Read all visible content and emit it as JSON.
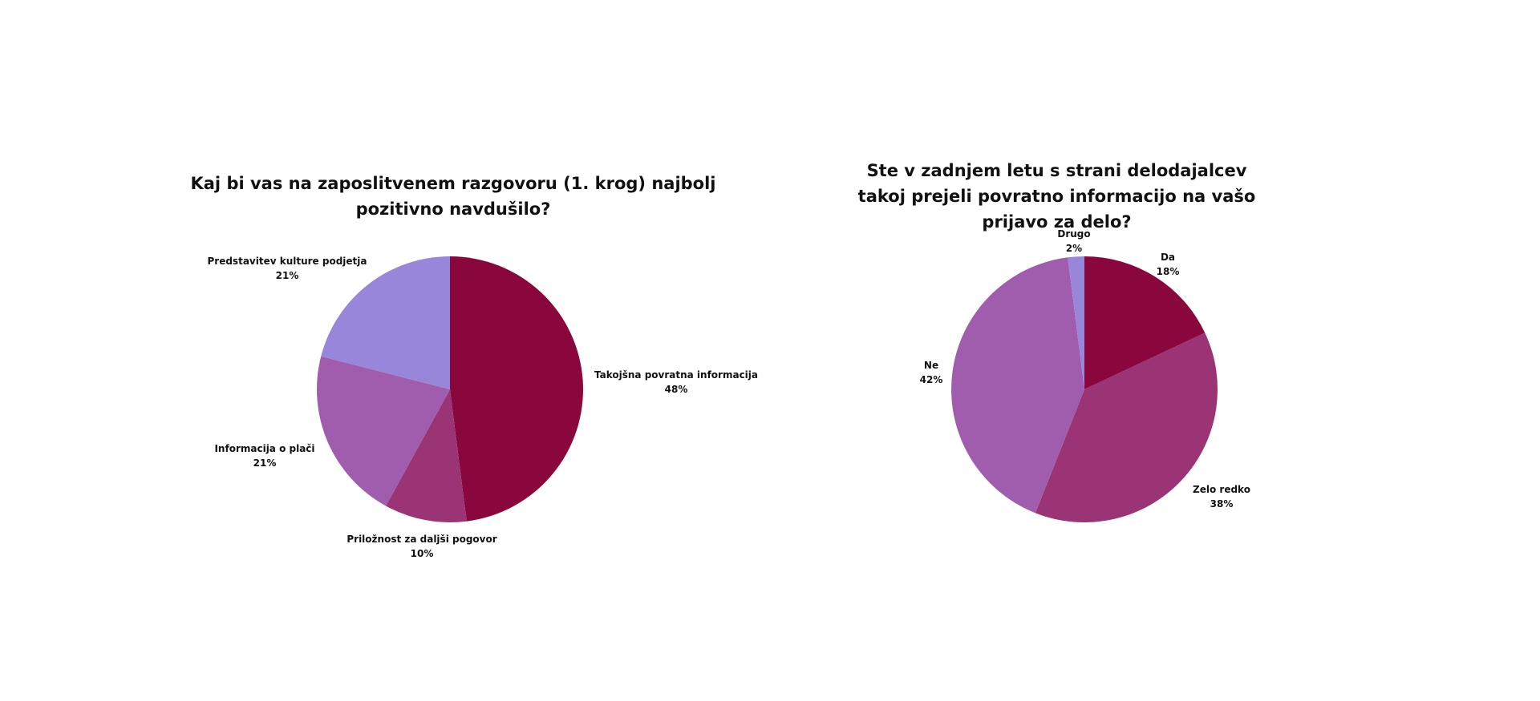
{
  "chart_data": [
    {
      "type": "pie",
      "title": "Kaj bi vas na zaposlitvenem razgovoru (1. krog) najbolj pozitivno navdušilo?",
      "slices": [
        {
          "label": "Takojšna povratna informacija",
          "value": 48,
          "value_label": "48%",
          "color": "#89073c"
        },
        {
          "label": "Priložnost za daljši pogovor",
          "value": 10,
          "value_label": "10%",
          "color": "#9a3474"
        },
        {
          "label": "Informacija o plači",
          "value": 21,
          "value_label": "21%",
          "color": "#a05dae"
        },
        {
          "label": "Predstavitev kulture podjetja",
          "value": 21,
          "value_label": "21%",
          "color": "#9886db"
        }
      ]
    },
    {
      "type": "pie",
      "title": "Ste v zadnjem letu s strani delodajalcev takoj prejeli povratno informacijo na vašo prijavo za delo?",
      "slices": [
        {
          "label": "Da",
          "value": 18,
          "value_label": "18%",
          "color": "#89073c"
        },
        {
          "label": "Zelo redko",
          "value": 38,
          "value_label": "38%",
          "color": "#9a3474"
        },
        {
          "label": "Ne",
          "value": 42,
          "value_label": "42%",
          "color": "#a05dae"
        },
        {
          "label": "Drugo",
          "value": 2,
          "value_label": "2%",
          "color": "#9886db"
        }
      ]
    }
  ]
}
